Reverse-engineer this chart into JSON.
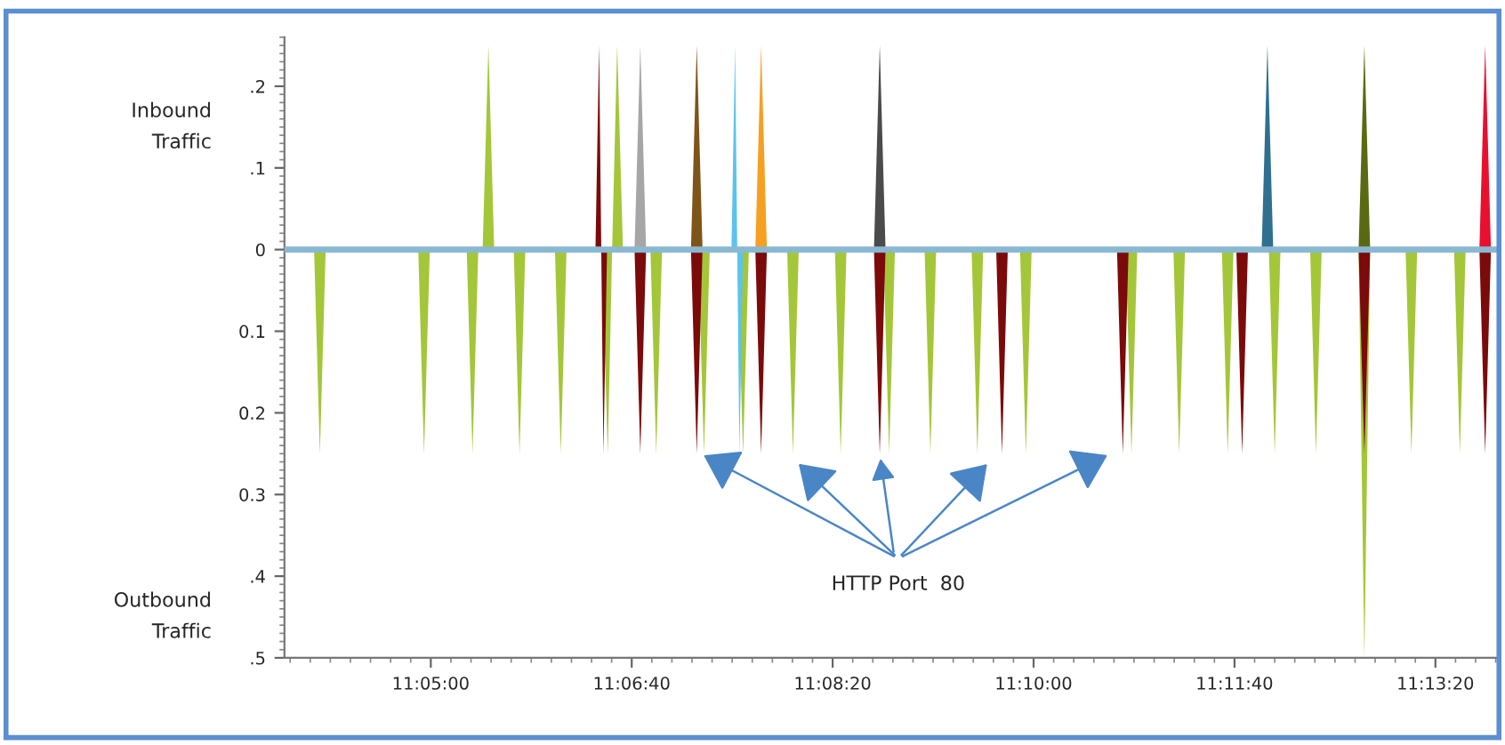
{
  "chart_data": {
    "type": "area",
    "annotations": [
      "Inbound\nTraffic",
      "Outbound\nTraffic",
      {
        "text": "HTTP Port  80",
        "x": 11.1454,
        "y": -0.25
      }
    ],
    "xlim": [
      11.0631,
      11.2308
    ],
    "xticks": [
      {
        "value": 11.083333,
        "label": "11:05:00"
      },
      {
        "value": 11.111111,
        "label": "11:06:40"
      },
      {
        "value": 11.138889,
        "label": "11:08:20"
      },
      {
        "value": 11.166667,
        "label": "11:10:00"
      },
      {
        "value": 11.194444,
        "label": "11:11:40"
      },
      {
        "value": 11.222222,
        "label": "11:13:20"
      }
    ],
    "ylim": [
      -0.5,
      0.26
    ],
    "yticks": [
      {
        "value": 0.2,
        "label": ".2"
      },
      {
        "value": 0.1,
        "label": ".1"
      },
      {
        "value": 0,
        "label": "0"
      },
      {
        "value": -0.1,
        "label": "0.1"
      },
      {
        "value": -0.2,
        "label": "0.2"
      },
      {
        "value": -0.3,
        "label": "0.3"
      },
      {
        "value": -0.4,
        "label": ".4"
      },
      {
        "value": -0.5,
        "label": ".5"
      }
    ],
    "ref_lines": [
      {
        "axis": "y",
        "value": 0,
        "color": "#8ab8d2"
      }
    ],
    "grid": false,
    "series": [
      {
        "color": "#a4c639",
        "x": [
          11.0672,
          11.068,
          11.0688,
          11.0816,
          11.0824,
          11.0832,
          11.0883,
          11.0891,
          11.0899,
          11.0905,
          11.0913,
          11.0921,
          11.0948,
          11.0956,
          11.0964,
          11.1005,
          11.1013,
          11.1021,
          11.107,
          11.1078,
          11.1084,
          11.1091,
          11.1099,
          11.1137,
          11.1145,
          11.1153,
          11.1203,
          11.1211,
          11.1219,
          11.1257,
          11.1265,
          11.1273,
          11.1326,
          11.1334,
          11.1342,
          11.1392,
          11.14,
          11.1408,
          11.1459,
          11.1467,
          11.1475,
          11.1516,
          11.1524,
          11.1532,
          11.1581,
          11.1589,
          11.1597,
          11.1648,
          11.1656,
          11.1664,
          11.1794,
          11.1802,
          11.181,
          11.186,
          11.1868,
          11.1876,
          11.1927,
          11.1935,
          11.1943,
          11.1992,
          11.2,
          11.2008,
          11.2049,
          11.2057,
          11.2065,
          11.2116,
          11.2124,
          11.2132,
          11.2181,
          11.2189,
          11.2197,
          11.2248,
          11.2256,
          11.2264
        ],
        "values": [
          0,
          -0.25,
          0,
          0,
          -0.25,
          0,
          0,
          -0.25,
          0,
          0,
          0.25,
          0,
          0,
          -0.25,
          0,
          0,
          -0.25,
          0,
          0,
          -0.25,
          0,
          0.25,
          0,
          0,
          -0.25,
          0,
          0,
          -0.25,
          0,
          0,
          -0.25,
          0,
          0,
          -0.25,
          0,
          0,
          -0.25,
          0,
          0,
          -0.25,
          0,
          0,
          -0.25,
          0,
          0,
          -0.25,
          0,
          0,
          -0.25,
          0,
          0,
          -0.25,
          0,
          0,
          -0.25,
          0,
          0,
          -0.25,
          0,
          0,
          -0.25,
          0,
          0,
          -0.25,
          0,
          0,
          -0.5,
          0,
          0,
          -0.25,
          0,
          0,
          -0.25,
          0
        ]
      },
      {
        "color": "#7b0a0a",
        "x": [
          11.1061,
          11.1066,
          11.1069,
          11.1072,
          11.1077,
          11.1115,
          11.1123,
          11.1131,
          11.1193,
          11.1201,
          11.1209,
          11.1282,
          11.129,
          11.1298,
          11.1446,
          11.1454,
          11.1462,
          11.1615,
          11.1623,
          11.1631,
          11.1782,
          11.179,
          11.1798,
          11.1947,
          11.1955,
          11.1963,
          11.2116,
          11.2124,
          11.2132,
          11.2283,
          11.2291,
          11.2299
        ],
        "values": [
          0,
          0.25,
          0,
          -0.25,
          0,
          0,
          -0.25,
          0,
          0,
          -0.25,
          0,
          0,
          -0.25,
          0,
          0,
          -0.25,
          0,
          0,
          -0.25,
          0,
          0,
          -0.25,
          0,
          0,
          -0.25,
          0,
          0,
          -0.25,
          0,
          0,
          -0.25,
          0
        ]
      },
      {
        "color": "#a6a6a6",
        "x": [
          11.1115,
          11.1123,
          11.1131
        ],
        "values": [
          0,
          0.25,
          0
        ]
      },
      {
        "color": "#7f5417",
        "x": [
          11.1193,
          11.1201,
          11.1209
        ],
        "values": [
          0,
          0.25,
          0
        ]
      },
      {
        "color": "#f5a020",
        "x": [
          11.1282,
          11.129,
          11.1298
        ],
        "values": [
          0,
          0.25,
          0
        ]
      },
      {
        "color": "#4d4a4a",
        "x": [
          11.1446,
          11.1454,
          11.1462
        ],
        "values": [
          0,
          0.25,
          0
        ]
      },
      {
        "color": "#2f6f8f",
        "x": [
          11.1982,
          11.199,
          11.1998
        ],
        "values": [
          0,
          0.25,
          0
        ]
      },
      {
        "color": "#5a6a12",
        "x": [
          11.2116,
          11.2124,
          11.2132
        ],
        "values": [
          0,
          0.25,
          0
        ]
      },
      {
        "color": "#e8102e",
        "x": [
          11.2283,
          11.2291,
          11.2299
        ],
        "values": [
          0,
          0.25,
          0
        ]
      },
      {
        "color": "#5bc3ee",
        "x": [
          11.1249,
          11.1254,
          11.1257,
          11.126,
          11.1265
        ],
        "values": [
          0,
          0.25,
          0,
          -0.25,
          0
        ]
      }
    ]
  }
}
